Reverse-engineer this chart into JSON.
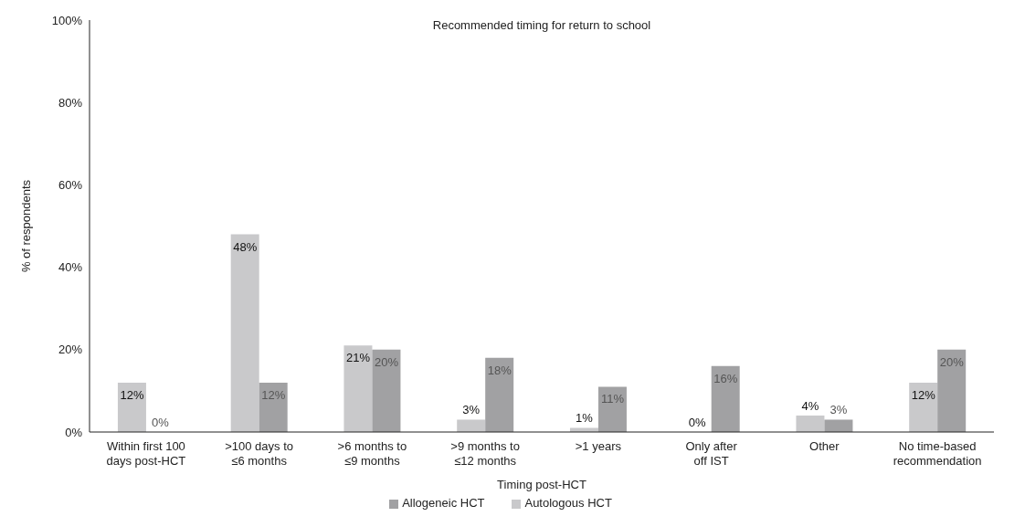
{
  "chart_data": {
    "type": "bar",
    "title": "Recommended timing for return to school",
    "xlabel": "Timing post-HCT",
    "ylabel": "% of respondents",
    "categories": [
      "Within first 100\ndays post-HCT",
      ">100 days to\n≤6 months",
      ">6 months to\n≤9 months",
      ">9 months to\n≤12 months",
      ">1 years",
      "Only after\noff IST",
      "Other",
      "No time-based\nrecommendation"
    ],
    "series": [
      {
        "name": "Autologous HCT",
        "color": "#c9c9cb",
        "values": [
          12,
          48,
          21,
          3,
          1,
          0,
          4,
          12
        ],
        "value_labels": [
          "12%",
          "48%",
          "21%",
          "3%",
          "1%",
          "0%",
          "4%",
          "12%"
        ]
      },
      {
        "name": "Allogeneic HCT",
        "color": "#a1a1a3",
        "values": [
          0,
          12,
          20,
          18,
          11,
          16,
          3,
          20
        ],
        "value_labels": [
          "0%",
          "12%",
          "20%",
          "18%",
          "11%",
          "16%",
          "3%",
          "20%"
        ]
      }
    ],
    "ylim": [
      0,
      100
    ],
    "yticks": [
      {
        "value": 0,
        "label": "0%"
      },
      {
        "value": 20,
        "label": "20%"
      },
      {
        "value": 40,
        "label": "40%"
      },
      {
        "value": 60,
        "label": "60%"
      },
      {
        "value": 80,
        "label": "80%"
      },
      {
        "value": 100,
        "label": "100%"
      }
    ],
    "grid": false,
    "legend": "bottom"
  }
}
